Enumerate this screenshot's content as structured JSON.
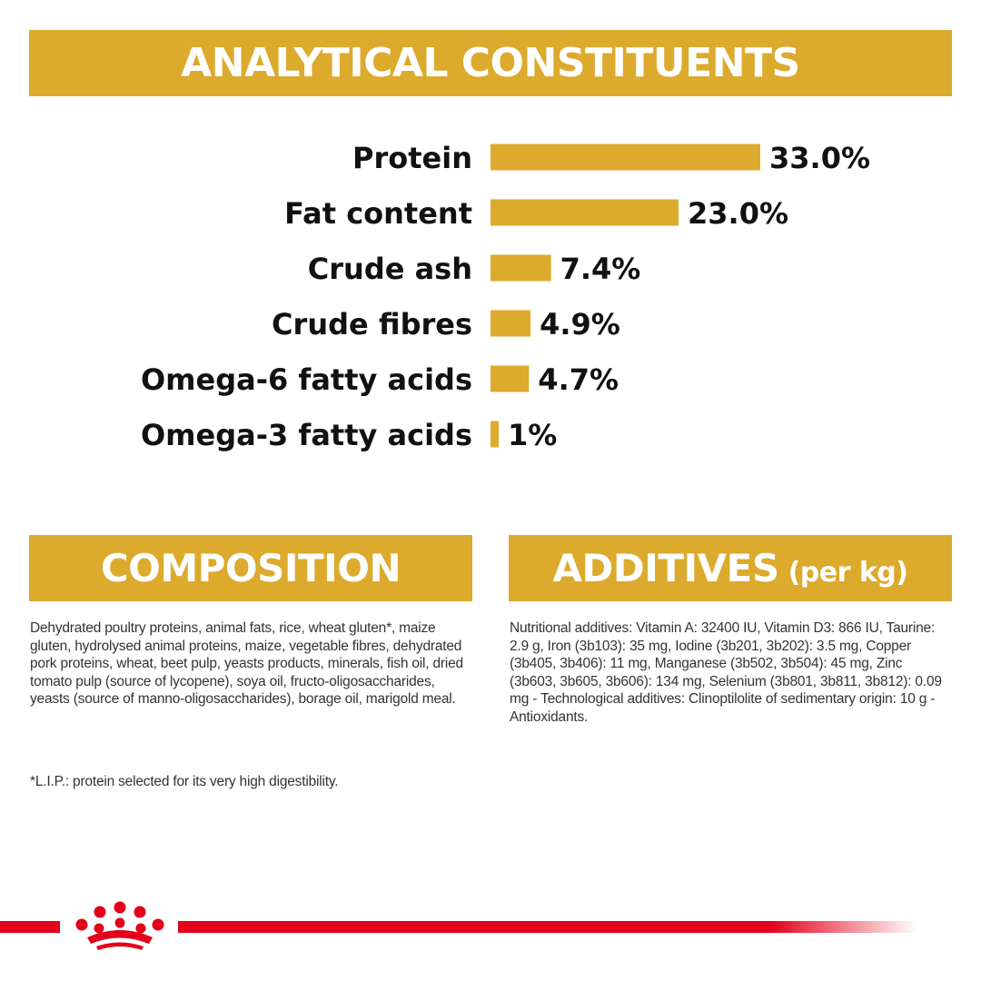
{
  "headings": {
    "analytical": "ANALYTICAL CONSTITUENTS",
    "composition": "COMPOSITION",
    "additives_main": "ADDITIVES",
    "additives_sub": "(per kg)"
  },
  "chart_data": {
    "type": "bar",
    "orientation": "horizontal",
    "categories": [
      "Protein",
      "Fat content",
      "Crude ash",
      "Crude fibres",
      "Omega-6 fatty acids",
      "Omega-3 fatty acids"
    ],
    "values": [
      33.0,
      23.0,
      7.4,
      4.9,
      4.7,
      1
    ],
    "value_labels": [
      "33.0%",
      "23.0%",
      "7.4%",
      "4.9%",
      "4.7%",
      "1%"
    ],
    "unit": "%",
    "bar_color": "#dcaa2c",
    "grid": false,
    "legend": "none"
  },
  "composition": {
    "text": "Dehydrated poultry proteins, animal fats, rice, wheat gluten*, maize gluten, hydrolysed animal proteins, maize, vegetable fibres, dehydrated pork proteins, wheat, beet pulp, yeasts products, minerals, fish oil, dried tomato pulp (source of lycopene), soya oil, fructo-oligosaccharides, yeasts (source of manno-oligosaccharides), borage oil, marigold meal.",
    "note": "*L.I.P.: protein selected for its very high digestibility."
  },
  "additives": {
    "text": "Nutritional additives: Vitamin A: 32400 IU, Vitamin D3: 866 IU, Taurine: 2.9 g, Iron (3b103): 35 mg, Iodine (3b201, 3b202): 3.5 mg, Copper (3b405, 3b406): 11 mg, Manganese (3b502, 3b504): 45 mg, Zinc (3b603, 3b605, 3b606): 134 mg, Selenium (3b801, 3b811, 3b812): 0.09 mg - Technological additives: Clinoptilolite of sedimentary origin: 10 g - Antioxidants."
  },
  "colors": {
    "accent_gold": "#dcaa2c",
    "brand_red": "#e2001a"
  },
  "logo": {
    "icon": "royal-canin-crown-icon"
  }
}
